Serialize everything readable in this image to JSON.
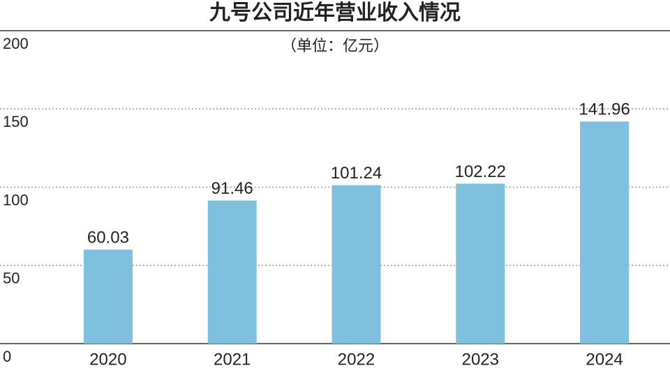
{
  "chart_data": {
    "type": "bar",
    "title": "九号公司近年营业收入情况",
    "subtitle": "（单位：亿元）",
    "categories": [
      "2020",
      "2021",
      "2022",
      "2023",
      "2024"
    ],
    "values": [
      60.03,
      91.46,
      101.24,
      102.22,
      141.96
    ],
    "color": "#7ec0dd",
    "ylim": [
      0,
      200
    ],
    "yticks": [
      0,
      50,
      100,
      150,
      200
    ],
    "grid": true
  }
}
